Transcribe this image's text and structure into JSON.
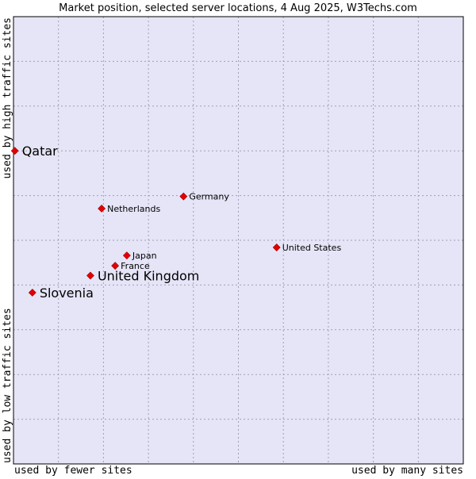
{
  "chart_data": {
    "type": "scatter",
    "title": "Market position, selected server locations, 4 Aug 2025, W3Techs.com",
    "x_axis": {
      "low_label": "used by fewer sites",
      "high_label": "used by many sites",
      "range": [
        0,
        100
      ]
    },
    "y_axis": {
      "low_label": "used by low traffic sites",
      "high_label": "used by high traffic sites",
      "range": [
        0,
        100
      ]
    },
    "grid": true,
    "colors": {
      "plot_background": "#e5e5f7",
      "grid": "#a0a0b4",
      "point": "#e30000",
      "border": "#000000"
    },
    "points": [
      {
        "label": "Qatar",
        "x": 0.3,
        "y": 70.0,
        "highlight": true
      },
      {
        "label": "Germany",
        "x": 37.8,
        "y": 59.8,
        "highlight": false
      },
      {
        "label": "Netherlands",
        "x": 19.6,
        "y": 57.1,
        "highlight": false
      },
      {
        "label": "United States",
        "x": 58.5,
        "y": 48.4,
        "highlight": false
      },
      {
        "label": "Japan",
        "x": 25.2,
        "y": 46.6,
        "highlight": false
      },
      {
        "label": "France",
        "x": 22.6,
        "y": 44.3,
        "highlight": false
      },
      {
        "label": "United Kingdom",
        "x": 17.1,
        "y": 42.1,
        "highlight": true
      },
      {
        "label": "Slovenia",
        "x": 4.2,
        "y": 38.3,
        "highlight": true
      }
    ]
  }
}
